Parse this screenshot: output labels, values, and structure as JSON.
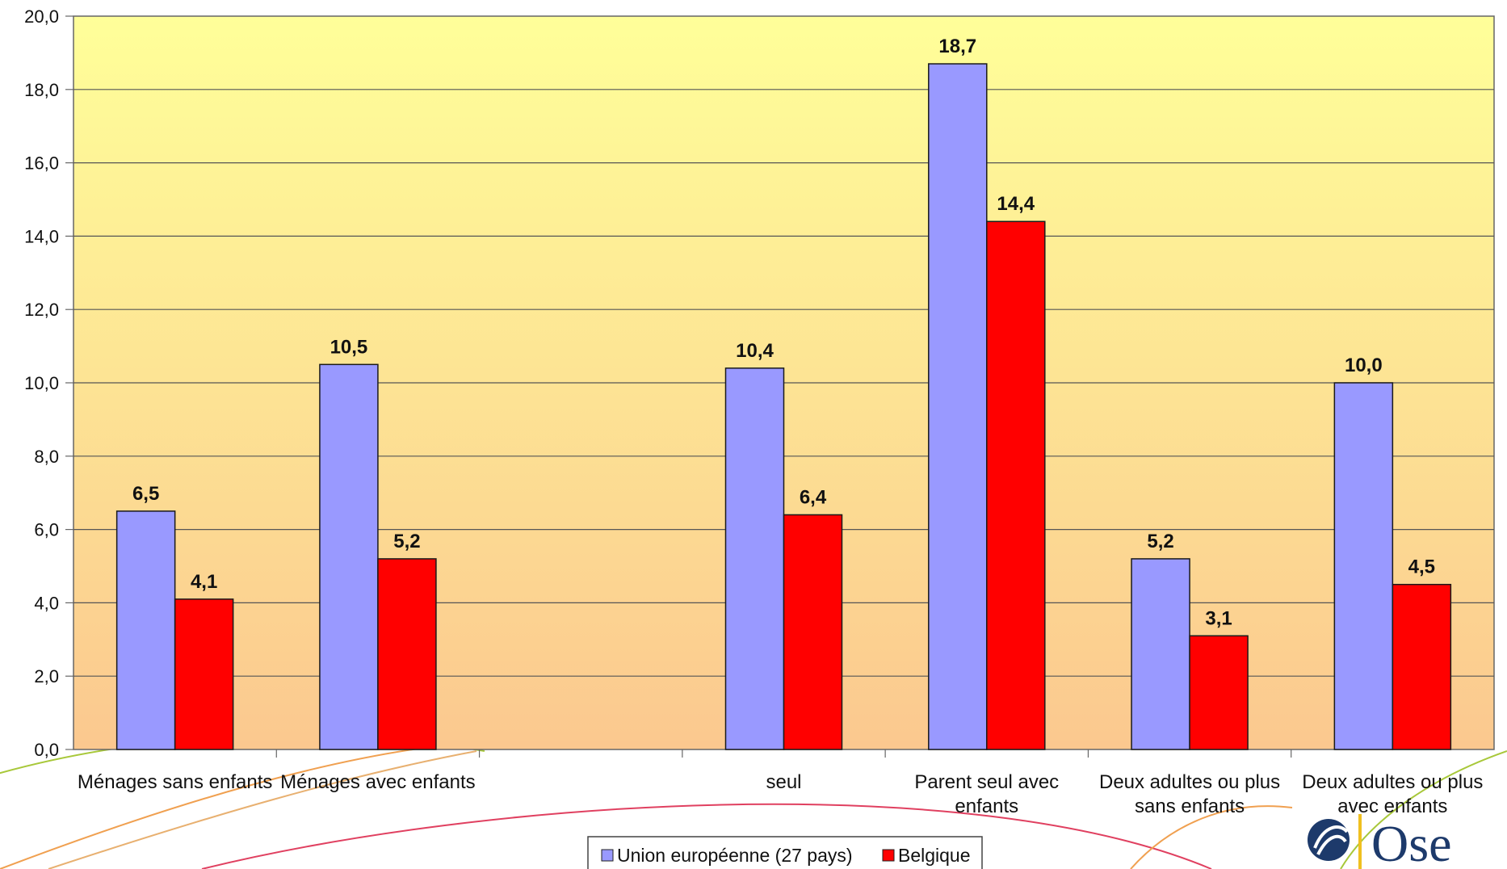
{
  "chart_data": {
    "type": "bar",
    "categories": [
      "Ménages sans enfants",
      "Ménages avec enfants",
      "",
      "seul",
      "Parent seul avec enfants",
      "Deux adultes ou plus sans enfants",
      "Deux adultes ou plus avec enfants"
    ],
    "series": [
      {
        "name": "Union européenne (27 pays)",
        "color": "#9999ff",
        "values": [
          6.5,
          10.5,
          null,
          10.4,
          18.7,
          5.2,
          10.0
        ]
      },
      {
        "name": "Belgique",
        "color": "#ff0000",
        "values": [
          4.1,
          5.2,
          null,
          6.4,
          14.4,
          3.1,
          4.5
        ]
      }
    ],
    "data_labels": [
      [
        "6,5",
        "10,5",
        "",
        "10,4",
        "18,7",
        "5,2",
        "10,0"
      ],
      [
        "4,1",
        "5,2",
        "",
        "6,4",
        "14,4",
        "3,1",
        "4,5"
      ]
    ],
    "yticks": [
      "0,0",
      "2,0",
      "4,0",
      "6,0",
      "8,0",
      "10,0",
      "12,0",
      "14,0",
      "16,0",
      "18,0",
      "20,0"
    ],
    "ylim": [
      0,
      20
    ],
    "grid": true,
    "legend_position": "bottom",
    "background_gradient": [
      "#ffff99",
      "#fbc88f"
    ]
  },
  "logo": {
    "text": "Ose",
    "color": "#1d3a6b"
  }
}
